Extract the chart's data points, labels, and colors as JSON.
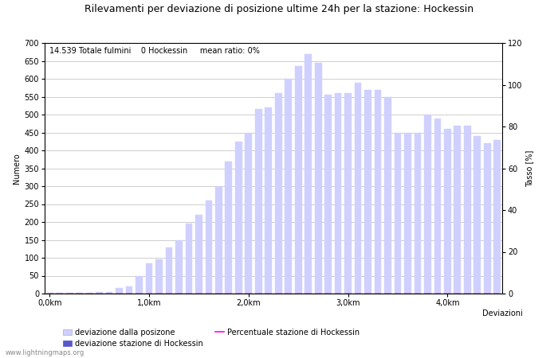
{
  "title": "Rilevamenti per deviazione di posizione ultime 24h per la stazione: Hockessin",
  "subtitle": "14.539 Totale fulmini    0 Hockessin     mean ratio: 0%",
  "xlabel": "Deviazioni",
  "ylabel_left": "Numero",
  "ylabel_right": "Tasso [%]",
  "watermark": "www.lightningmaps.org",
  "bar_values": [
    2,
    2,
    2,
    3,
    3,
    4,
    5,
    15,
    20,
    50,
    85,
    95,
    128,
    150,
    195,
    220,
    260,
    300,
    370,
    425,
    450,
    515,
    520,
    560,
    600,
    635,
    670,
    645,
    555,
    560,
    560,
    590,
    570,
    570,
    550,
    450,
    450,
    450,
    500,
    490,
    460,
    470,
    470,
    440,
    420,
    430
  ],
  "hockessin_values": [
    0,
    0,
    0,
    0,
    0,
    0,
    0,
    0,
    0,
    0,
    0,
    0,
    0,
    0,
    0,
    0,
    0,
    0,
    0,
    0,
    0,
    0,
    0,
    0,
    0,
    0,
    0,
    0,
    0,
    0,
    0,
    0,
    0,
    0,
    0,
    0,
    0,
    0,
    0,
    0,
    0,
    0,
    0,
    0,
    0,
    0
  ],
  "percentuale": [
    0,
    0,
    0,
    0,
    0,
    0,
    0,
    0,
    0,
    0,
    0,
    0,
    0,
    0,
    0,
    0,
    0,
    0,
    0,
    0,
    0,
    0,
    0,
    0,
    0,
    0,
    0,
    0,
    0,
    0,
    0,
    0,
    0,
    0,
    0,
    0,
    0,
    0,
    0,
    0,
    0,
    0,
    0,
    0,
    0,
    0
  ],
  "n_bars": 46,
  "x_tick_positions": [
    0,
    10,
    20,
    30,
    40
  ],
  "x_tick_labels": [
    "0,0km",
    "1,0km",
    "2,0km",
    "3,0km",
    "4,0km"
  ],
  "ylim_left": [
    0,
    700
  ],
  "ylim_right": [
    0,
    120
  ],
  "y_ticks_left": [
    0,
    50,
    100,
    150,
    200,
    250,
    300,
    350,
    400,
    450,
    500,
    550,
    600,
    650,
    700
  ],
  "y_ticks_right": [
    0,
    20,
    40,
    60,
    80,
    100,
    120
  ],
  "bar_color_light": "#d0d0ff",
  "bar_color_dark": "#5858cc",
  "line_color": "#ff00ff",
  "grid_color": "#bbbbbb",
  "background_color": "#ffffff",
  "title_fontsize": 9,
  "subtitle_fontsize": 7,
  "axis_fontsize": 7,
  "tick_fontsize": 7,
  "legend_fontsize": 7
}
